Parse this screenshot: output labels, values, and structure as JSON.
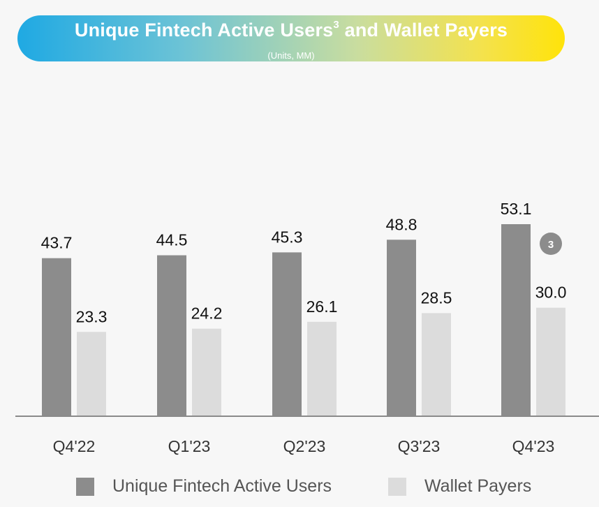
{
  "header": {
    "title_main": "Unique Fintech Active Users",
    "title_sup": "3",
    "title_rest": " and Wallet Payers",
    "subtitle": "(Units, MM)"
  },
  "colors": {
    "active_users": "#8c8c8c",
    "wallet_payers": "#dcdcdc",
    "axis": "#8a8a8a",
    "badge": "#8c8c8c"
  },
  "badge": {
    "text": "3"
  },
  "legend": {
    "active_users_label": "Unique Fintech Active Users",
    "wallet_payers_label": "Wallet Payers"
  },
  "chart_data": {
    "type": "bar",
    "title": "Unique Fintech Active Users and Wallet Payers",
    "subtitle": "(Units, MM)",
    "categories": [
      "Q4'22",
      "Q1'23",
      "Q2'23",
      "Q3'23",
      "Q4'23"
    ],
    "series": [
      {
        "name": "Unique Fintech Active Users",
        "values": [
          43.7,
          44.5,
          45.3,
          48.8,
          53.1
        ],
        "labels": [
          "43.7",
          "44.5",
          "45.3",
          "48.8",
          "53.1"
        ]
      },
      {
        "name": "Wallet Payers",
        "values": [
          23.3,
          24.2,
          26.1,
          28.5,
          30.0
        ],
        "labels": [
          "23.3",
          "24.2",
          "26.1",
          "28.5",
          "30.0"
        ]
      }
    ],
    "xlabel": "",
    "ylabel": "",
    "ylim": [
      0,
      60
    ],
    "grid": false,
    "legend_position": "bottom"
  }
}
